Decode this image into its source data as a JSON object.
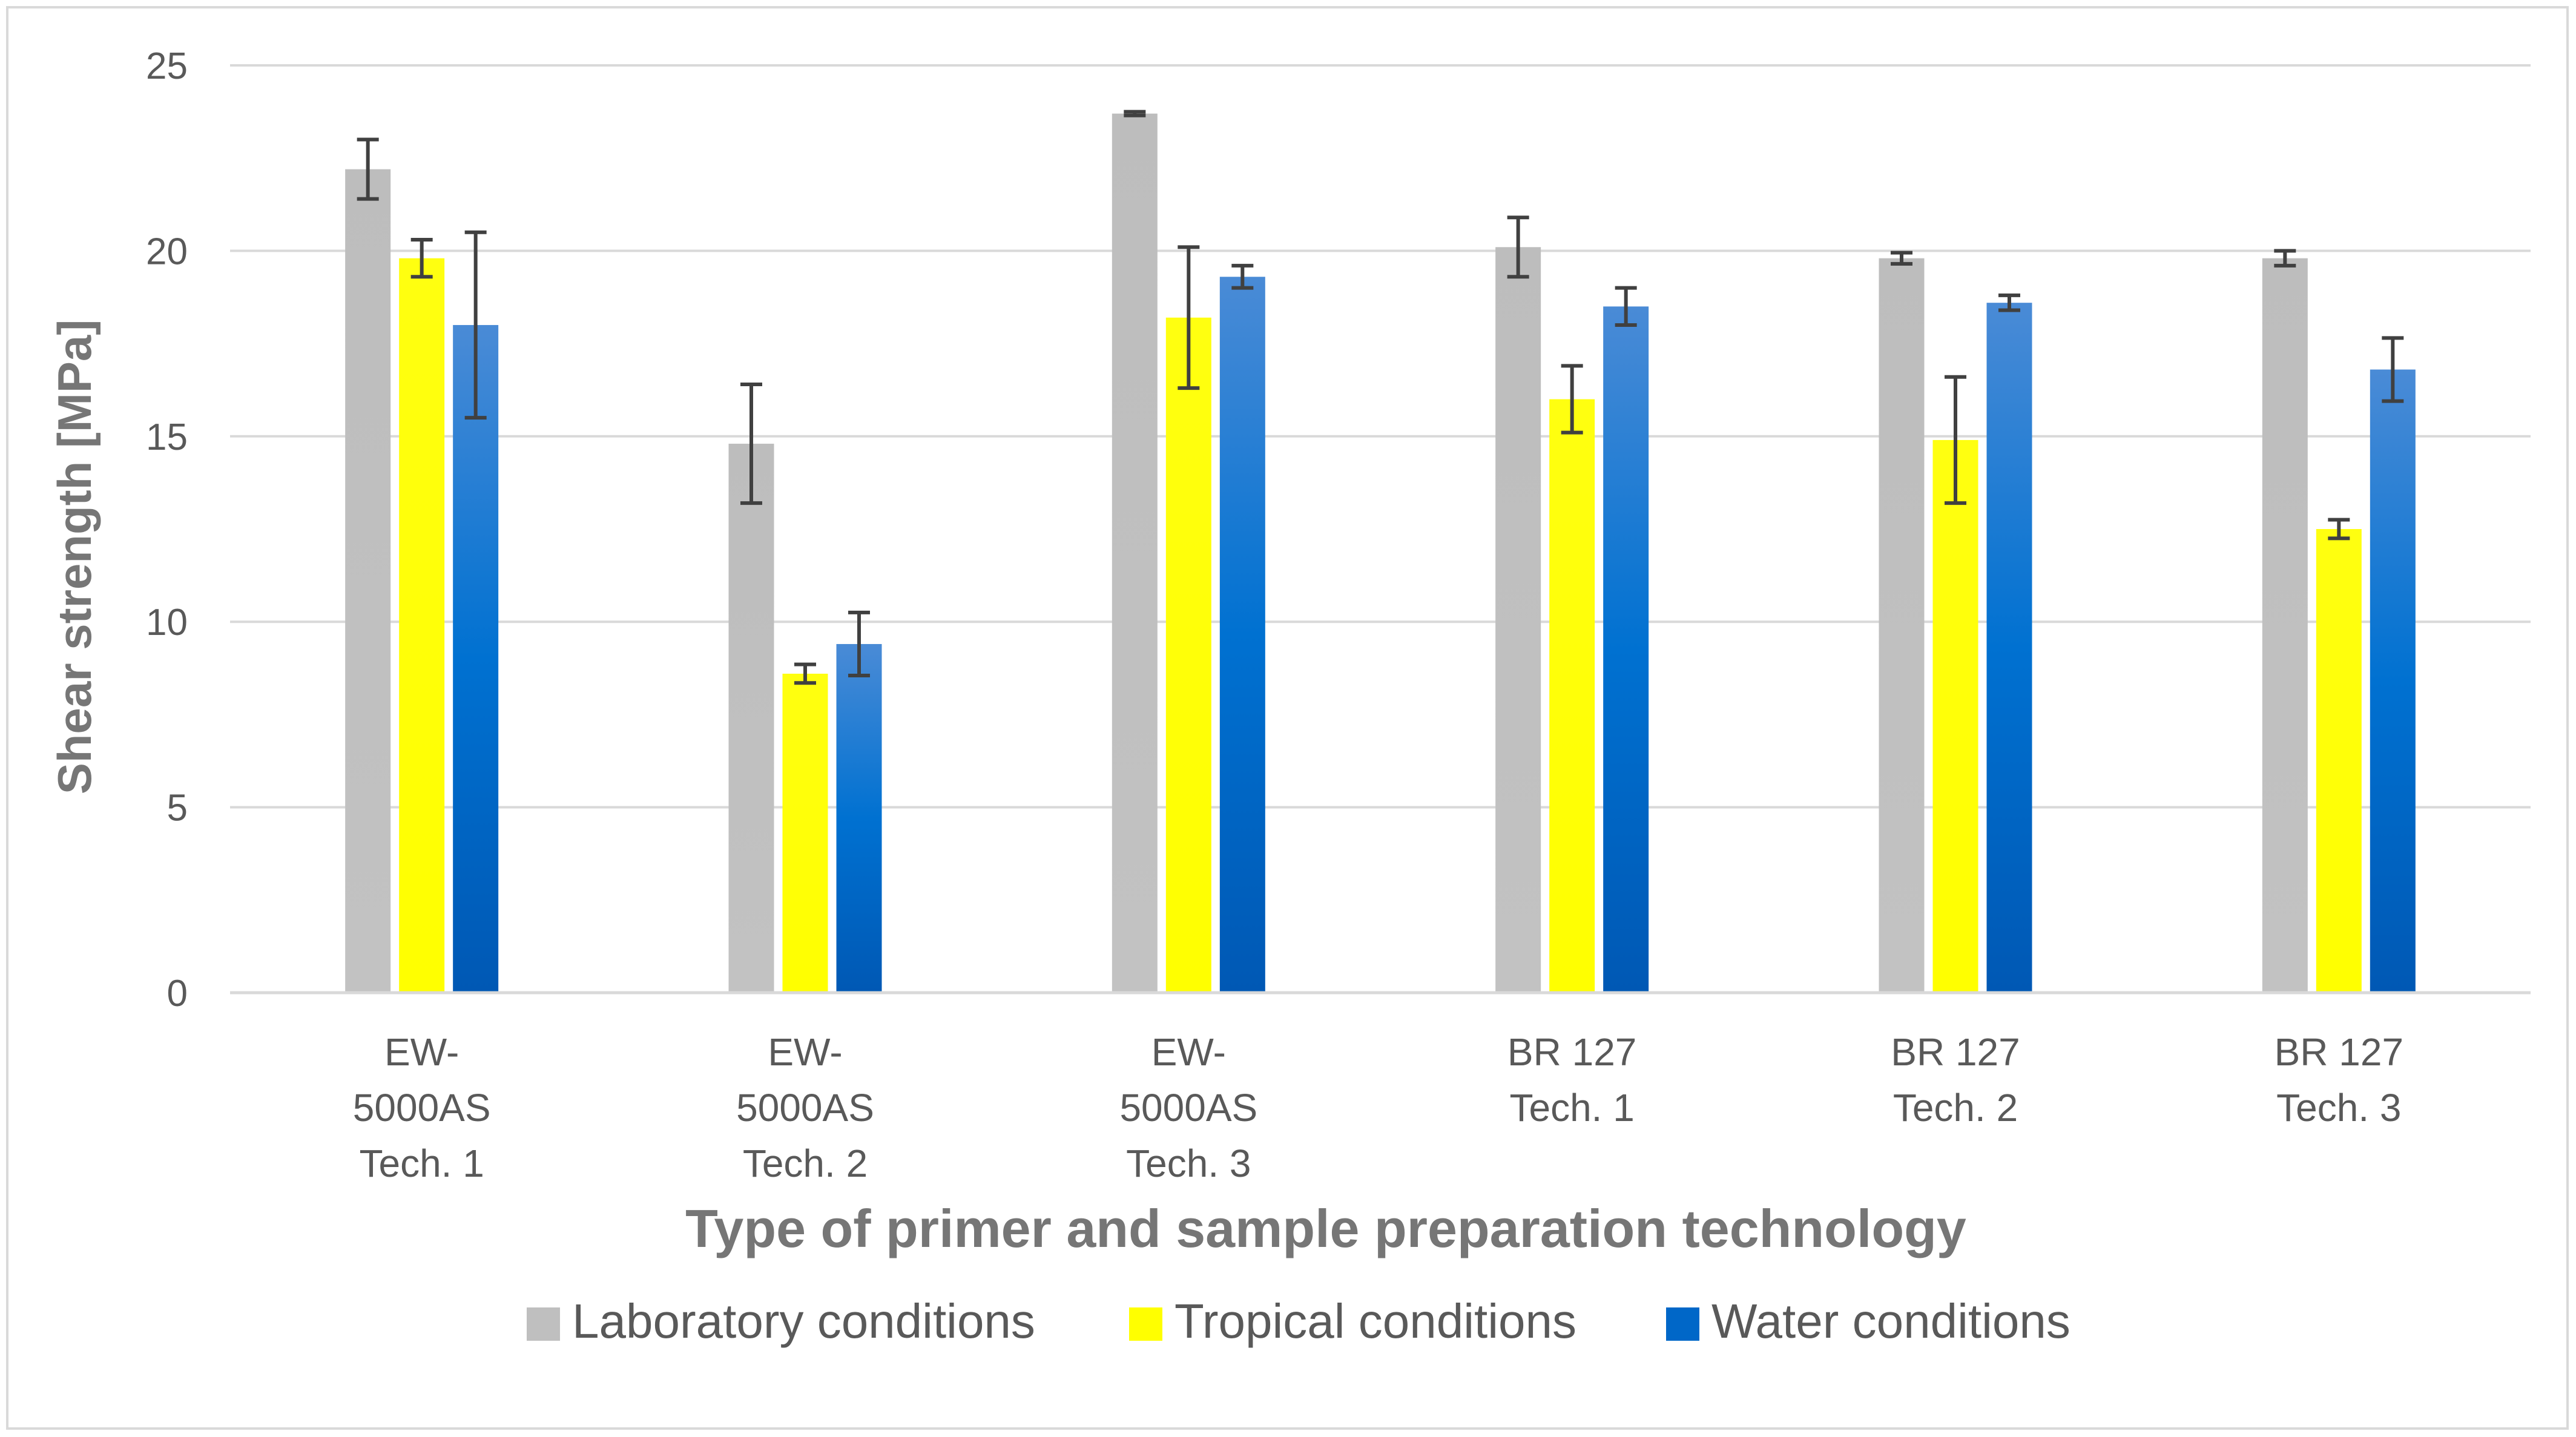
{
  "chart_data": {
    "type": "bar",
    "title": "",
    "xlabel": "Type of primer and sample preparation technology",
    "ylabel": "Shear strength [MPa]",
    "ylim": [
      0,
      25
    ],
    "yticks": [
      "0",
      "5",
      "10",
      "15",
      "20",
      "25"
    ],
    "grid": true,
    "legend_position": "bottom",
    "categories": [
      [
        "EW-",
        "5000AS",
        "Tech. 1"
      ],
      [
        "EW-",
        "5000AS",
        "Tech. 2"
      ],
      [
        "EW-",
        "5000AS",
        "Tech. 3"
      ],
      [
        "BR 127",
        "Tech. 1"
      ],
      [
        "BR 127",
        "Tech. 2"
      ],
      [
        "BR 127",
        "Tech. 3"
      ]
    ],
    "series": [
      {
        "name": "Laboratory conditions",
        "color": "#bfbfbf",
        "values": [
          22.2,
          14.8,
          23.7,
          20.1,
          19.8,
          19.8
        ],
        "errors": [
          0.8,
          1.6,
          0.05,
          0.8,
          0.15,
          0.2
        ]
      },
      {
        "name": "Tropical conditions",
        "color": "#ffff00",
        "values": [
          19.8,
          8.6,
          18.2,
          16.0,
          14.9,
          12.5
        ],
        "errors": [
          0.5,
          0.25,
          1.9,
          0.9,
          1.7,
          0.25
        ]
      },
      {
        "name": "Water conditions",
        "color": "#0070c0",
        "values": [
          18.0,
          9.4,
          19.3,
          18.5,
          18.6,
          16.8
        ],
        "errors": [
          2.5,
          0.85,
          0.3,
          0.5,
          0.2,
          0.85
        ]
      }
    ]
  }
}
